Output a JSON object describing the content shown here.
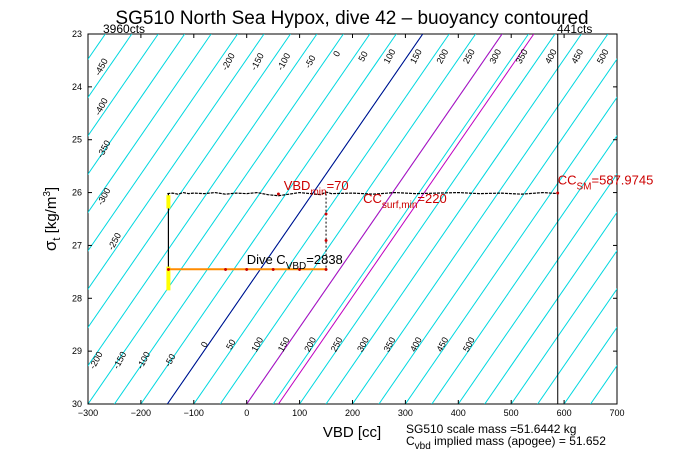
{
  "chart_data": {
    "type": "line",
    "title": "SG510 North Sea Hypox, dive 42 – buoyancy contoured",
    "xlabel": "VBD [cc]",
    "ylabel_main": "σ",
    "ylabel_sub": "t",
    "ylabel_units_pre": " [kg/m",
    "ylabel_units_sup": "3",
    "ylabel_units_post": "]",
    "xlim": [
      -300,
      700
    ],
    "ylim": [
      23,
      30
    ],
    "y_reversed": true,
    "grid": false,
    "x_ticks": [
      "−300",
      "−200",
      "−100",
      "0",
      "100",
      "200",
      "300",
      "400",
      "500",
      "600",
      "700"
    ],
    "y_ticks": [
      "23",
      "24",
      "25",
      "26",
      "27",
      "28",
      "29",
      "30"
    ],
    "corner_left": "3960cts",
    "corner_right": "441cts",
    "contour_offsets": [
      -450,
      -400,
      -350,
      -300,
      -250,
      -200,
      -150,
      -100,
      -50,
      0,
      50,
      100,
      150,
      200,
      250,
      300,
      350,
      400,
      450,
      500,
      550,
      600,
      650,
      700,
      750,
      800,
      850,
      900,
      950,
      1000,
      1050,
      1100
    ],
    "contour_slope": 0.0145,
    "highlight_lines": [
      {
        "offset": 0,
        "color": "#00008b"
      },
      {
        "offset": 150,
        "color": "#c000c0"
      },
      {
        "offset": 220,
        "color": "#c000c0"
      },
      {
        "offset": 587.9745,
        "color": "#c000c0"
      }
    ],
    "labels_top": [
      {
        "text": "-450",
        "x": -270,
        "y": 23.65
      },
      {
        "text": "-400",
        "x": -270,
        "y": 24.4
      },
      {
        "text": "-350",
        "x": -265,
        "y": 25.2
      },
      {
        "text": "-300",
        "x": -265,
        "y": 26.1
      },
      {
        "text": "-250",
        "x": -245,
        "y": 26.95
      },
      {
        "text": "-200",
        "x": -30,
        "y": 23.55
      },
      {
        "text": "-150",
        "x": 25,
        "y": 23.55
      },
      {
        "text": "-100",
        "x": 75,
        "y": 23.55
      },
      {
        "text": "-50",
        "x": 125,
        "y": 23.55
      },
      {
        "text": "0",
        "x": 175,
        "y": 23.4
      },
      {
        "text": "50",
        "x": 225,
        "y": 23.45
      },
      {
        "text": "100",
        "x": 275,
        "y": 23.45
      },
      {
        "text": "150",
        "x": 325,
        "y": 23.45
      },
      {
        "text": "200",
        "x": 375,
        "y": 23.45
      },
      {
        "text": "250",
        "x": 425,
        "y": 23.45
      },
      {
        "text": "300",
        "x": 475,
        "y": 23.45
      },
      {
        "text": "350",
        "x": 525,
        "y": 23.45
      },
      {
        "text": "400",
        "x": 580,
        "y": 23.45
      },
      {
        "text": "450",
        "x": 630,
        "y": 23.45
      },
      {
        "text": "500",
        "x": 678,
        "y": 23.45
      }
    ],
    "labels_bottom": [
      {
        "text": "-200",
        "x": -280,
        "y": 29.2
      },
      {
        "text": "-150",
        "x": -235,
        "y": 29.2
      },
      {
        "text": "-100",
        "x": -190,
        "y": 29.2
      },
      {
        "text": "-50",
        "x": -140,
        "y": 29.2
      },
      {
        "text": "0",
        "x": -75,
        "y": 28.9
      },
      {
        "text": "50",
        "x": -25,
        "y": 28.9
      },
      {
        "text": "100",
        "x": 25,
        "y": 28.9
      },
      {
        "text": "150",
        "x": 75,
        "y": 28.9
      },
      {
        "text": "200",
        "x": 125,
        "y": 28.9
      },
      {
        "text": "250",
        "x": 175,
        "y": 28.9
      },
      {
        "text": "300",
        "x": 225,
        "y": 28.9
      },
      {
        "text": "350",
        "x": 275,
        "y": 28.9
      },
      {
        "text": "400",
        "x": 325,
        "y": 28.9
      },
      {
        "text": "450",
        "x": 375,
        "y": 28.9
      },
      {
        "text": "500",
        "x": 425,
        "y": 28.9
      }
    ],
    "dive_profile": {
      "x": [
        -150,
        -140,
        -130,
        -120,
        -110,
        -100,
        -80,
        -60,
        -40,
        -20,
        0,
        20,
        40,
        60,
        80,
        100,
        120,
        140,
        150,
        160,
        200,
        240,
        280,
        320,
        360,
        400,
        440,
        480,
        520,
        560,
        590
      ],
      "y": [
        26.02,
        26.01,
        26.03,
        26.0,
        26.02,
        26.01,
        26.02,
        26.0,
        26.03,
        26.01,
        26.02,
        26.0,
        26.04,
        26.06,
        26.03,
        26.0,
        26.02,
        26.04,
        25.99,
        26.02,
        26.01,
        26.03,
        26.0,
        26.02,
        26.01,
        26.0,
        26.02,
        26.01,
        26.03,
        26.0,
        26.02
      ],
      "color": "#000000"
    },
    "box_left_x": -148,
    "box_right_x": 150,
    "box_top_y": 26.02,
    "box_bottom_y": 27.45,
    "yellow_bar": {
      "x": -148,
      "y0": 26.05,
      "y1": 26.3,
      "y2": 27.4,
      "y3": 27.85
    },
    "orange_line": {
      "x": [
        -148,
        150
      ],
      "y": [
        27.45,
        27.45
      ],
      "color": "#ff8c00"
    },
    "red_markers": [
      {
        "x": -148,
        "y": 27.45
      },
      {
        "x": -40,
        "y": 27.45
      },
      {
        "x": 0,
        "y": 27.45
      },
      {
        "x": 50,
        "y": 27.45
      },
      {
        "x": 100,
        "y": 27.45
      },
      {
        "x": 150,
        "y": 27.45
      },
      {
        "x": 150,
        "y": 26.9
      },
      {
        "x": 150,
        "y": 26.4
      },
      {
        "x": 60,
        "y": 26.02
      },
      {
        "x": 587.97,
        "y": 26.0
      }
    ],
    "vbd_min_label": {
      "main": "VBD",
      "sub": "min",
      "tail": "=70",
      "color": "#cc0000",
      "x": 70,
      "y": 25.95
    },
    "cc_surf_label": {
      "main": "CC",
      "sub": "surf,min",
      "tail": "=220",
      "color": "#cc0000",
      "x": 220,
      "y": 26.2
    },
    "cc_sm_label": {
      "main": "CC",
      "sub": "SM",
      "tail": "=587.9745",
      "color": "#cc0000",
      "x": 587.97,
      "y": 25.85
    },
    "dive_c_label": {
      "main": "Dive C",
      "sub": "VBD",
      "tail": "=2838",
      "color": "#000000",
      "x": 0,
      "y": 27.35
    },
    "footer_line1": "SG510 scale mass =51.6442 kg",
    "footer_line2_main": "C",
    "footer_line2_sub": "vbd",
    "footer_line2_tail": " implied mass (apogee) = 51.652"
  }
}
